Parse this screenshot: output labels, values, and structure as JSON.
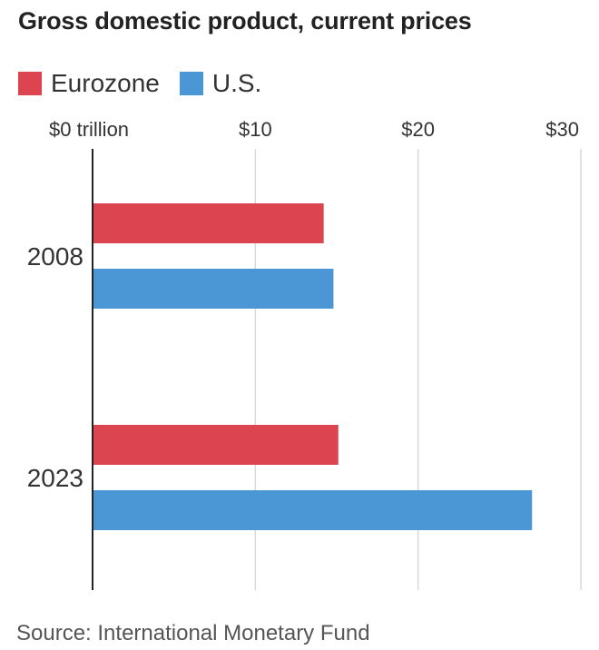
{
  "title": "Gross domestic product, current prices",
  "legend": [
    {
      "label": "Eurozone",
      "color": "#dc454f"
    },
    {
      "label": "U.S.",
      "color": "#4b97d6"
    }
  ],
  "source": "Source: International Monetary Fund",
  "chart_data": {
    "type": "bar",
    "orientation": "horizontal",
    "title": "Gross domestic product, current prices",
    "categories": [
      "2008",
      "2023"
    ],
    "series": [
      {
        "name": "Eurozone",
        "color": "#dc454f",
        "values": [
          14.2,
          15.1
        ]
      },
      {
        "name": "U.S.",
        "color": "#4b97d6",
        "values": [
          14.8,
          27.0
        ]
      }
    ],
    "x_ticks": [
      0,
      10,
      20,
      30
    ],
    "x_tick_labels": [
      "$0 trillion",
      "$10",
      "$20",
      "$30"
    ],
    "xlim": [
      0,
      30
    ],
    "grid": true,
    "legend_position": "top-left",
    "source": "Source: International Monetary Fund"
  }
}
